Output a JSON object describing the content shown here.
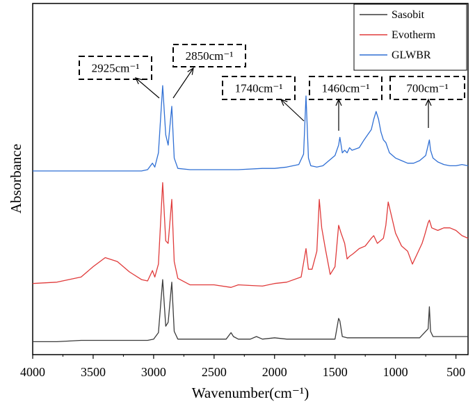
{
  "chart_data": {
    "type": "line",
    "xlabel": "Wavenumber(cm⁻¹)",
    "ylabel": "Absorbance",
    "xlim": [
      4000,
      400
    ],
    "x_reversed": true,
    "x_ticks": [
      4000,
      3500,
      3000,
      2500,
      2000,
      1500,
      1000,
      500
    ],
    "y_ticks_shown": false,
    "grid": false,
    "legend_position": "top-right",
    "series": [
      {
        "name": "Sasobit",
        "color": "#3a3a3a",
        "points": [
          [
            4000,
            0.1
          ],
          [
            3800,
            0.1
          ],
          [
            3600,
            0.11
          ],
          [
            3400,
            0.11
          ],
          [
            3200,
            0.11
          ],
          [
            3050,
            0.11
          ],
          [
            3000,
            0.12
          ],
          [
            2960,
            0.17
          ],
          [
            2925,
            0.58
          ],
          [
            2900,
            0.22
          ],
          [
            2880,
            0.25
          ],
          [
            2850,
            0.56
          ],
          [
            2830,
            0.18
          ],
          [
            2800,
            0.12
          ],
          [
            2600,
            0.12
          ],
          [
            2400,
            0.12
          ],
          [
            2360,
            0.17
          ],
          [
            2340,
            0.14
          ],
          [
            2300,
            0.12
          ],
          [
            2200,
            0.12
          ],
          [
            2150,
            0.14
          ],
          [
            2100,
            0.12
          ],
          [
            2000,
            0.13
          ],
          [
            1900,
            0.12
          ],
          [
            1700,
            0.12
          ],
          [
            1500,
            0.12
          ],
          [
            1470,
            0.28
          ],
          [
            1460,
            0.26
          ],
          [
            1440,
            0.14
          ],
          [
            1400,
            0.13
          ],
          [
            1200,
            0.13
          ],
          [
            1000,
            0.13
          ],
          [
            800,
            0.13
          ],
          [
            730,
            0.2
          ],
          [
            720,
            0.37
          ],
          [
            710,
            0.18
          ],
          [
            690,
            0.14
          ],
          [
            600,
            0.14
          ],
          [
            400,
            0.14
          ]
        ]
      },
      {
        "name": "Evotherm",
        "color": "#e03a3a",
        "points": [
          [
            4000,
            0.55
          ],
          [
            3800,
            0.56
          ],
          [
            3600,
            0.6
          ],
          [
            3500,
            0.68
          ],
          [
            3400,
            0.75
          ],
          [
            3300,
            0.72
          ],
          [
            3200,
            0.64
          ],
          [
            3100,
            0.58
          ],
          [
            3050,
            0.57
          ],
          [
            3010,
            0.65
          ],
          [
            2990,
            0.6
          ],
          [
            2960,
            0.7
          ],
          [
            2925,
            1.33
          ],
          [
            2900,
            0.88
          ],
          [
            2880,
            0.86
          ],
          [
            2850,
            1.2
          ],
          [
            2830,
            0.72
          ],
          [
            2800,
            0.59
          ],
          [
            2700,
            0.54
          ],
          [
            2500,
            0.54
          ],
          [
            2360,
            0.52
          ],
          [
            2300,
            0.54
          ],
          [
            2100,
            0.53
          ],
          [
            2000,
            0.55
          ],
          [
            1900,
            0.56
          ],
          [
            1780,
            0.6
          ],
          [
            1740,
            0.82
          ],
          [
            1720,
            0.66
          ],
          [
            1690,
            0.66
          ],
          [
            1650,
            0.8
          ],
          [
            1630,
            1.2
          ],
          [
            1610,
            0.98
          ],
          [
            1580,
            0.82
          ],
          [
            1540,
            0.62
          ],
          [
            1500,
            0.68
          ],
          [
            1470,
            1.0
          ],
          [
            1450,
            0.94
          ],
          [
            1420,
            0.86
          ],
          [
            1400,
            0.74
          ],
          [
            1380,
            0.76
          ],
          [
            1350,
            0.78
          ],
          [
            1300,
            0.82
          ],
          [
            1250,
            0.84
          ],
          [
            1200,
            0.9
          ],
          [
            1180,
            0.92
          ],
          [
            1150,
            0.86
          ],
          [
            1100,
            0.9
          ],
          [
            1080,
            1.0
          ],
          [
            1060,
            1.18
          ],
          [
            1040,
            1.1
          ],
          [
            1000,
            0.94
          ],
          [
            950,
            0.84
          ],
          [
            900,
            0.8
          ],
          [
            860,
            0.7
          ],
          [
            820,
            0.78
          ],
          [
            780,
            0.86
          ],
          [
            760,
            0.92
          ],
          [
            730,
            1.02
          ],
          [
            720,
            1.04
          ],
          [
            700,
            0.98
          ],
          [
            650,
            0.96
          ],
          [
            600,
            0.98
          ],
          [
            550,
            0.98
          ],
          [
            500,
            0.96
          ],
          [
            450,
            0.92
          ],
          [
            400,
            0.9
          ]
        ]
      },
      {
        "name": "GLWBR",
        "color": "#2f6fd4",
        "points": [
          [
            4000,
            1.42
          ],
          [
            3800,
            1.42
          ],
          [
            3600,
            1.42
          ],
          [
            3400,
            1.42
          ],
          [
            3200,
            1.42
          ],
          [
            3100,
            1.42
          ],
          [
            3050,
            1.43
          ],
          [
            3010,
            1.48
          ],
          [
            2990,
            1.45
          ],
          [
            2960,
            1.56
          ],
          [
            2925,
            2.08
          ],
          [
            2900,
            1.7
          ],
          [
            2880,
            1.62
          ],
          [
            2850,
            1.92
          ],
          [
            2830,
            1.52
          ],
          [
            2800,
            1.44
          ],
          [
            2700,
            1.43
          ],
          [
            2500,
            1.43
          ],
          [
            2300,
            1.43
          ],
          [
            2100,
            1.44
          ],
          [
            2000,
            1.44
          ],
          [
            1900,
            1.45
          ],
          [
            1800,
            1.47
          ],
          [
            1760,
            1.55
          ],
          [
            1740,
            2.0
          ],
          [
            1720,
            1.52
          ],
          [
            1700,
            1.46
          ],
          [
            1650,
            1.45
          ],
          [
            1600,
            1.46
          ],
          [
            1550,
            1.5
          ],
          [
            1500,
            1.54
          ],
          [
            1470,
            1.62
          ],
          [
            1460,
            1.68
          ],
          [
            1440,
            1.56
          ],
          [
            1420,
            1.58
          ],
          [
            1400,
            1.56
          ],
          [
            1380,
            1.6
          ],
          [
            1360,
            1.58
          ],
          [
            1300,
            1.6
          ],
          [
            1260,
            1.66
          ],
          [
            1230,
            1.7
          ],
          [
            1200,
            1.74
          ],
          [
            1180,
            1.82
          ],
          [
            1160,
            1.88
          ],
          [
            1140,
            1.82
          ],
          [
            1120,
            1.72
          ],
          [
            1100,
            1.66
          ],
          [
            1080,
            1.64
          ],
          [
            1050,
            1.56
          ],
          [
            1000,
            1.52
          ],
          [
            950,
            1.5
          ],
          [
            900,
            1.48
          ],
          [
            850,
            1.48
          ],
          [
            800,
            1.5
          ],
          [
            750,
            1.54
          ],
          [
            720,
            1.66
          ],
          [
            710,
            1.58
          ],
          [
            690,
            1.52
          ],
          [
            650,
            1.49
          ],
          [
            600,
            1.47
          ],
          [
            550,
            1.46
          ],
          [
            500,
            1.46
          ],
          [
            450,
            1.47
          ],
          [
            400,
            1.46
          ]
        ]
      }
    ],
    "annotations": [
      {
        "label": "2925cm⁻¹",
        "wavenumber": 2925
      },
      {
        "label": "2850cm⁻¹",
        "wavenumber": 2850
      },
      {
        "label": "1740cm⁻¹",
        "wavenumber": 1740
      },
      {
        "label": "1460cm⁻¹",
        "wavenumber": 1460
      },
      {
        "label": "700cm⁻¹",
        "wavenumber": 700
      }
    ]
  }
}
